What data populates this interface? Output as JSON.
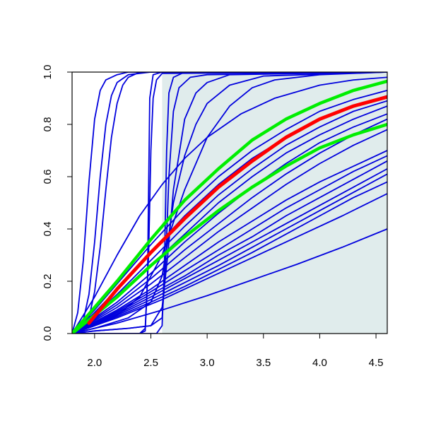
{
  "chart_data": {
    "type": "line",
    "title": "",
    "xlabel": "",
    "ylabel": "",
    "xlim": [
      1.8,
      4.6
    ],
    "ylim": [
      0.0,
      1.0
    ],
    "x_ticks": [
      2.0,
      2.5,
      3.0,
      3.5,
      4.0,
      4.5
    ],
    "x_tick_labels": [
      "2.0",
      "2.5",
      "3.0",
      "3.5",
      "4.0",
      "4.5"
    ],
    "y_ticks": [
      0.0,
      0.2,
      0.4,
      0.6,
      0.8,
      1.0
    ],
    "y_tick_labels": [
      "0.0",
      "0.2",
      "0.4",
      "0.6",
      "0.8",
      "1.0"
    ],
    "grid": false,
    "legend": "none",
    "shaded_region": {
      "x_from": 2.6,
      "x_to": 4.6,
      "color": "#e0ecec"
    },
    "colors": {
      "curves": "#0000dd",
      "highlight": "#ff0000",
      "bounds": "#00ee00",
      "frame": "#000000"
    },
    "series": [
      {
        "role": "highlight",
        "x": [
          1.95,
          2.2,
          2.5,
          2.8,
          3.1,
          3.4,
          3.7,
          4.0,
          4.3,
          4.6
        ],
        "y": [
          0.04,
          0.17,
          0.31,
          0.44,
          0.56,
          0.66,
          0.75,
          0.82,
          0.87,
          0.905
        ]
      },
      {
        "role": "bound",
        "x": [
          1.8,
          2.2,
          2.5,
          2.8,
          3.1,
          3.4,
          3.7,
          4.0,
          4.3,
          4.6
        ],
        "y": [
          0.0,
          0.2,
          0.36,
          0.51,
          0.63,
          0.74,
          0.82,
          0.88,
          0.93,
          0.965
        ]
      },
      {
        "role": "bound",
        "x": [
          1.8,
          2.2,
          2.5,
          2.8,
          3.1,
          3.4,
          3.7,
          4.0,
          4.3,
          4.6
        ],
        "y": [
          0.0,
          0.14,
          0.26,
          0.37,
          0.47,
          0.56,
          0.64,
          0.71,
          0.76,
          0.8
        ]
      },
      {
        "role": "curve",
        "x": [
          1.8,
          1.85,
          1.9,
          1.95,
          2.0,
          2.05,
          2.1,
          2.2,
          2.3,
          2.4,
          4.6
        ],
        "y": [
          0.0,
          0.08,
          0.28,
          0.58,
          0.82,
          0.93,
          0.97,
          0.99,
          1.0,
          1.0,
          1.0
        ]
      },
      {
        "role": "curve",
        "x": [
          1.8,
          1.9,
          1.95,
          2.0,
          2.05,
          2.1,
          2.15,
          2.2,
          2.3,
          2.5,
          4.6
        ],
        "y": [
          0.0,
          0.05,
          0.15,
          0.35,
          0.6,
          0.8,
          0.91,
          0.96,
          0.99,
          1.0,
          1.0
        ]
      },
      {
        "role": "curve",
        "x": [
          1.8,
          1.95,
          2.0,
          2.05,
          2.1,
          2.15,
          2.2,
          2.25,
          2.3,
          2.4,
          4.6
        ],
        "y": [
          0.0,
          0.06,
          0.16,
          0.33,
          0.55,
          0.75,
          0.88,
          0.95,
          0.98,
          1.0,
          1.0
        ]
      },
      {
        "role": "curve",
        "x": [
          1.8,
          1.9,
          2.0,
          2.1,
          2.2,
          2.3,
          2.4,
          2.45,
          2.47,
          2.49,
          2.52,
          2.6,
          4.6
        ],
        "y": [
          0.0,
          0.0,
          0.0,
          0.0,
          0.0,
          0.0,
          0.0,
          0.01,
          0.2,
          0.9,
          0.99,
          1.0,
          1.0
        ]
      },
      {
        "role": "curve",
        "x": [
          1.8,
          2.0,
          2.2,
          2.4,
          2.45,
          2.48,
          2.5,
          2.52,
          2.55,
          2.6,
          4.6
        ],
        "y": [
          0.0,
          0.0,
          0.0,
          0.0,
          0.02,
          0.3,
          0.7,
          0.9,
          0.97,
          0.995,
          1.0
        ]
      },
      {
        "role": "curve",
        "x": [
          1.8,
          2.0,
          2.2,
          2.4,
          2.55,
          2.6,
          2.62,
          2.64,
          2.66,
          2.7,
          2.8,
          4.6
        ],
        "y": [
          0.0,
          0.0,
          0.0,
          0.0,
          0.0,
          0.03,
          0.25,
          0.7,
          0.92,
          0.98,
          1.0,
          1.0
        ]
      },
      {
        "role": "curve",
        "x": [
          1.8,
          2.0,
          2.3,
          2.5,
          2.6,
          2.63,
          2.66,
          2.7,
          2.75,
          2.85,
          3.0,
          4.6
        ],
        "y": [
          0.0,
          0.01,
          0.02,
          0.03,
          0.06,
          0.25,
          0.6,
          0.85,
          0.94,
          0.98,
          0.99,
          1.0
        ]
      },
      {
        "role": "curve",
        "x": [
          1.8,
          2.0,
          2.3,
          2.5,
          2.6,
          2.65,
          2.7,
          2.8,
          2.9,
          3.0,
          3.2,
          4.6
        ],
        "y": [
          0.0,
          0.01,
          0.02,
          0.03,
          0.1,
          0.3,
          0.55,
          0.82,
          0.92,
          0.96,
          0.99,
          1.0
        ]
      },
      {
        "role": "curve",
        "x": [
          1.8,
          2.0,
          2.3,
          2.5,
          2.6,
          2.65,
          2.7,
          2.8,
          2.9,
          3.0,
          3.2,
          3.5,
          4.6
        ],
        "y": [
          0.0,
          0.02,
          0.06,
          0.12,
          0.22,
          0.35,
          0.5,
          0.68,
          0.8,
          0.88,
          0.95,
          0.985,
          1.0
        ]
      },
      {
        "role": "curve",
        "x": [
          1.8,
          2.0,
          2.2,
          2.4,
          2.6,
          2.8,
          3.0,
          3.2,
          3.4,
          3.6,
          4.0,
          4.6
        ],
        "y": [
          0.0,
          0.03,
          0.07,
          0.14,
          0.3,
          0.55,
          0.75,
          0.87,
          0.94,
          0.97,
          0.99,
          1.0
        ]
      },
      {
        "role": "curve",
        "x": [
          1.8,
          2.0,
          2.2,
          2.4,
          2.6,
          2.8,
          3.0,
          3.3,
          3.6,
          4.0,
          4.3,
          4.6
        ],
        "y": [
          0.0,
          0.14,
          0.3,
          0.45,
          0.57,
          0.67,
          0.75,
          0.84,
          0.9,
          0.95,
          0.97,
          0.98
        ]
      },
      {
        "role": "curve",
        "x": [
          1.8,
          2.0,
          2.2,
          2.5,
          2.8,
          3.1,
          3.4,
          3.7,
          4.0,
          4.3,
          4.6
        ],
        "y": [
          0.0,
          0.09,
          0.19,
          0.34,
          0.48,
          0.6,
          0.7,
          0.78,
          0.85,
          0.895,
          0.93
        ]
      },
      {
        "role": "curve",
        "x": [
          1.8,
          2.0,
          2.2,
          2.5,
          2.8,
          3.1,
          3.4,
          3.7,
          4.0,
          4.3,
          4.6
        ],
        "y": [
          0.0,
          0.08,
          0.17,
          0.31,
          0.45,
          0.57,
          0.67,
          0.75,
          0.82,
          0.87,
          0.91
        ]
      },
      {
        "role": "curve",
        "x": [
          1.8,
          2.0,
          2.2,
          2.5,
          2.8,
          3.1,
          3.4,
          3.7,
          4.0,
          4.3,
          4.6
        ],
        "y": [
          0.0,
          0.07,
          0.15,
          0.28,
          0.41,
          0.53,
          0.63,
          0.72,
          0.79,
          0.85,
          0.89
        ]
      },
      {
        "role": "curve",
        "x": [
          1.8,
          2.0,
          2.2,
          2.5,
          2.8,
          3.1,
          3.4,
          3.7,
          4.0,
          4.3,
          4.6
        ],
        "y": [
          0.0,
          0.065,
          0.14,
          0.26,
          0.38,
          0.5,
          0.6,
          0.69,
          0.76,
          0.82,
          0.87
        ]
      },
      {
        "role": "curve",
        "x": [
          1.8,
          2.0,
          2.2,
          2.5,
          2.8,
          3.1,
          3.4,
          3.7,
          4.0,
          4.3,
          4.6
        ],
        "y": [
          0.0,
          0.06,
          0.12,
          0.23,
          0.35,
          0.46,
          0.56,
          0.65,
          0.73,
          0.79,
          0.84
        ]
      },
      {
        "role": "curve",
        "x": [
          1.8,
          2.0,
          2.2,
          2.5,
          2.8,
          3.1,
          3.4,
          3.7,
          4.0,
          4.3,
          4.6
        ],
        "y": [
          0.0,
          0.055,
          0.11,
          0.21,
          0.32,
          0.42,
          0.52,
          0.61,
          0.69,
          0.76,
          0.82
        ]
      },
      {
        "role": "curve",
        "x": [
          1.8,
          2.0,
          2.2,
          2.5,
          2.8,
          3.1,
          3.4,
          3.7,
          4.0,
          4.3,
          4.6
        ],
        "y": [
          0.0,
          0.05,
          0.1,
          0.19,
          0.29,
          0.39,
          0.48,
          0.57,
          0.65,
          0.72,
          0.78
        ]
      },
      {
        "role": "curve",
        "x": [
          1.8,
          2.0,
          2.2,
          2.5,
          2.8,
          3.1,
          3.4,
          3.7,
          4.0,
          4.3,
          4.6
        ],
        "y": [
          0.0,
          0.045,
          0.09,
          0.17,
          0.26,
          0.35,
          0.43,
          0.51,
          0.58,
          0.64,
          0.7
        ]
      },
      {
        "role": "curve",
        "x": [
          1.8,
          2.0,
          2.2,
          2.5,
          2.8,
          3.1,
          3.4,
          3.7,
          4.0,
          4.3,
          4.6
        ],
        "y": [
          0.0,
          0.04,
          0.085,
          0.16,
          0.24,
          0.32,
          0.4,
          0.48,
          0.55,
          0.62,
          0.68
        ]
      },
      {
        "role": "curve",
        "x": [
          1.8,
          2.0,
          2.2,
          2.5,
          2.8,
          3.1,
          3.4,
          3.7,
          4.0,
          4.3,
          4.6
        ],
        "y": [
          0.0,
          0.038,
          0.08,
          0.15,
          0.22,
          0.3,
          0.37,
          0.45,
          0.52,
          0.59,
          0.66
        ]
      },
      {
        "role": "curve",
        "x": [
          1.8,
          2.0,
          2.2,
          2.5,
          2.8,
          3.1,
          3.4,
          3.7,
          4.0,
          4.3,
          4.6
        ],
        "y": [
          0.0,
          0.035,
          0.075,
          0.14,
          0.21,
          0.28,
          0.35,
          0.42,
          0.49,
          0.56,
          0.63
        ]
      },
      {
        "role": "curve",
        "x": [
          1.8,
          2.0,
          2.2,
          2.5,
          2.8,
          3.1,
          3.4,
          3.7,
          4.0,
          4.3,
          4.6
        ],
        "y": [
          0.0,
          0.033,
          0.07,
          0.13,
          0.195,
          0.26,
          0.33,
          0.4,
          0.47,
          0.54,
          0.61
        ]
      },
      {
        "role": "curve",
        "x": [
          1.8,
          2.0,
          2.2,
          2.5,
          2.8,
          3.1,
          3.4,
          3.7,
          4.0,
          4.3,
          4.6
        ],
        "y": [
          0.0,
          0.03,
          0.065,
          0.12,
          0.18,
          0.245,
          0.31,
          0.38,
          0.45,
          0.52,
          0.58
        ]
      },
      {
        "role": "curve",
        "x": [
          1.8,
          2.2,
          2.6,
          3.0,
          3.4,
          3.8,
          4.2,
          4.6
        ],
        "y": [
          0.0,
          0.06,
          0.13,
          0.21,
          0.29,
          0.37,
          0.45,
          0.535
        ]
      },
      {
        "role": "curve",
        "x": [
          1.8,
          2.2,
          2.6,
          3.0,
          3.4,
          3.8,
          4.2,
          4.6
        ],
        "y": [
          0.0,
          0.04,
          0.09,
          0.145,
          0.205,
          0.265,
          0.33,
          0.4
        ]
      }
    ]
  }
}
